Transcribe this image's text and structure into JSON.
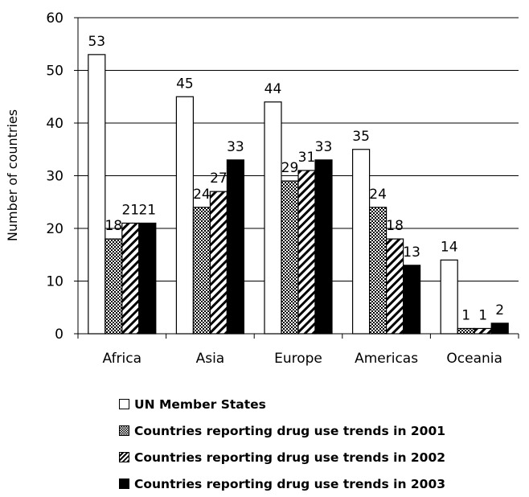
{
  "chart_data": {
    "type": "bar",
    "ylabel": "Number of countries",
    "xlabel": "",
    "ylim": [
      0,
      60
    ],
    "yticks": [
      0,
      10,
      20,
      30,
      40,
      50,
      60
    ],
    "categories": [
      "Africa",
      "Asia",
      "Europe",
      "Americas",
      "Oceania"
    ],
    "series": [
      {
        "name": "UN Member States",
        "values": [
          53,
          45,
          44,
          35,
          14
        ],
        "fill": "white"
      },
      {
        "name": "Countries reporting drug use trends in 2001",
        "values": [
          18,
          24,
          29,
          24,
          1
        ],
        "fill": "dots"
      },
      {
        "name": "Countries reporting drug use trends in 2002",
        "values": [
          21,
          27,
          31,
          18,
          1
        ],
        "fill": "hatch"
      },
      {
        "name": "Countries reporting drug use trends in 2003",
        "values": [
          21,
          33,
          33,
          13,
          2
        ],
        "fill": "black"
      }
    ],
    "legend_position": "bottom",
    "grid": true
  }
}
